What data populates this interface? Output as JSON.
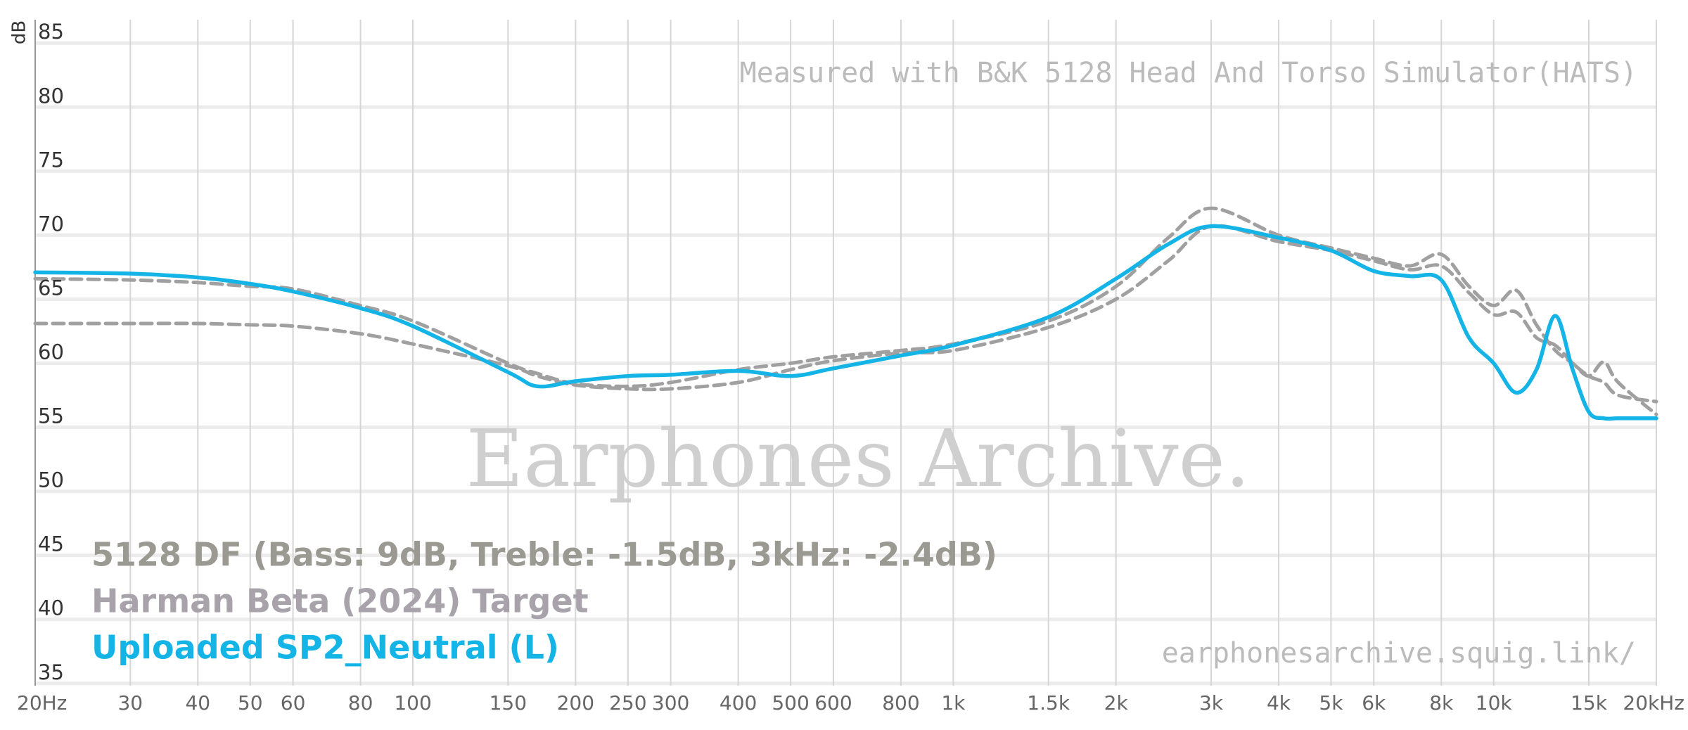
{
  "chart_data": {
    "type": "line",
    "y_label": "dB",
    "annotations": [
      "Measured with B&K 5128 Head And Torso Simulator(HATS)",
      "Earphones Archive.",
      "earphonesarchive.squig.link/"
    ],
    "x_scale": "log",
    "grid": true,
    "legend_position": "bottom-left",
    "xlim": [
      20,
      20000
    ],
    "ylim": [
      34,
      86
    ],
    "xticks": [
      {
        "value": 20,
        "label": "20Hz"
      },
      30,
      40,
      50,
      60,
      80,
      100,
      150,
      200,
      250,
      300,
      400,
      500,
      600,
      800,
      {
        "value": 1000,
        "label": "1k"
      },
      {
        "value": 1500,
        "label": "1.5k"
      },
      {
        "value": 2000,
        "label": "2k"
      },
      {
        "value": 3000,
        "label": "3k"
      },
      {
        "value": 4000,
        "label": "4k"
      },
      {
        "value": 5000,
        "label": "5k"
      },
      {
        "value": 6000,
        "label": "6k"
      },
      {
        "value": 8000,
        "label": "8k"
      },
      {
        "value": 10000,
        "label": "10k"
      },
      {
        "value": 15000,
        "label": "15k"
      },
      {
        "value": 20000,
        "label": "20kHz"
      }
    ],
    "yticks": [
      35,
      40,
      45,
      50,
      55,
      60,
      65,
      70,
      75,
      80,
      85
    ],
    "x": [
      20,
      30,
      40,
      50,
      60,
      80,
      100,
      150,
      170,
      200,
      250,
      300,
      400,
      500,
      600,
      800,
      1000,
      1500,
      2000,
      2500,
      3000,
      4000,
      5000,
      6000,
      7000,
      8000,
      9000,
      10000,
      11000,
      12000,
      13000,
      14000,
      15000,
      16000,
      17000,
      20000
    ],
    "series": [
      {
        "name": "5128 DF (Bass: 9dB, Treble: -1.5dB, 3kHz: -2.4dB)",
        "color": "#a0a0a0",
        "legend_color": "#9a9a92",
        "dashed": true,
        "values": [
          66.6,
          66.5,
          66.3,
          66.0,
          65.8,
          64.5,
          63.3,
          60.0,
          59.2,
          58.4,
          58.2,
          58.5,
          59.5,
          60.0,
          60.5,
          61.0,
          61.5,
          63.3,
          66.0,
          69.8,
          72.1,
          70.0,
          69.0,
          68.2,
          67.6,
          68.5,
          66.0,
          64.5,
          65.7,
          63.0,
          61.0,
          60.0,
          59.0,
          60.1,
          58.5,
          56.0
        ]
      },
      {
        "name": "Harman Beta (2024) Target",
        "color": "#a0a0a0",
        "legend_color": "#a8a3ab",
        "dashed": true,
        "values": [
          63.1,
          63.1,
          63.1,
          63.0,
          62.9,
          62.3,
          61.5,
          59.8,
          59.0,
          58.3,
          58.0,
          58.0,
          58.5,
          59.5,
          60.2,
          60.8,
          61.0,
          62.8,
          65.0,
          68.0,
          70.7,
          69.5,
          68.8,
          68.0,
          67.3,
          67.6,
          65.5,
          63.8,
          64.0,
          62.0,
          61.4,
          60.0,
          59.0,
          58.5,
          57.5,
          57.0
        ]
      },
      {
        "name": "Uploaded SP2_Neutral (L)",
        "color": "#14b4e6",
        "legend_color": "#14b4e6",
        "dashed": false,
        "values": [
          67.1,
          67.0,
          66.7,
          66.2,
          65.6,
          64.3,
          62.9,
          59.3,
          58.2,
          58.6,
          59.0,
          59.1,
          59.4,
          59.0,
          59.6,
          60.6,
          61.4,
          63.6,
          66.6,
          69.3,
          70.7,
          69.8,
          68.8,
          67.2,
          66.8,
          66.5,
          62.0,
          60.0,
          57.7,
          59.5,
          63.7,
          59.5,
          56.2,
          55.7,
          55.7,
          55.7
        ]
      }
    ]
  }
}
